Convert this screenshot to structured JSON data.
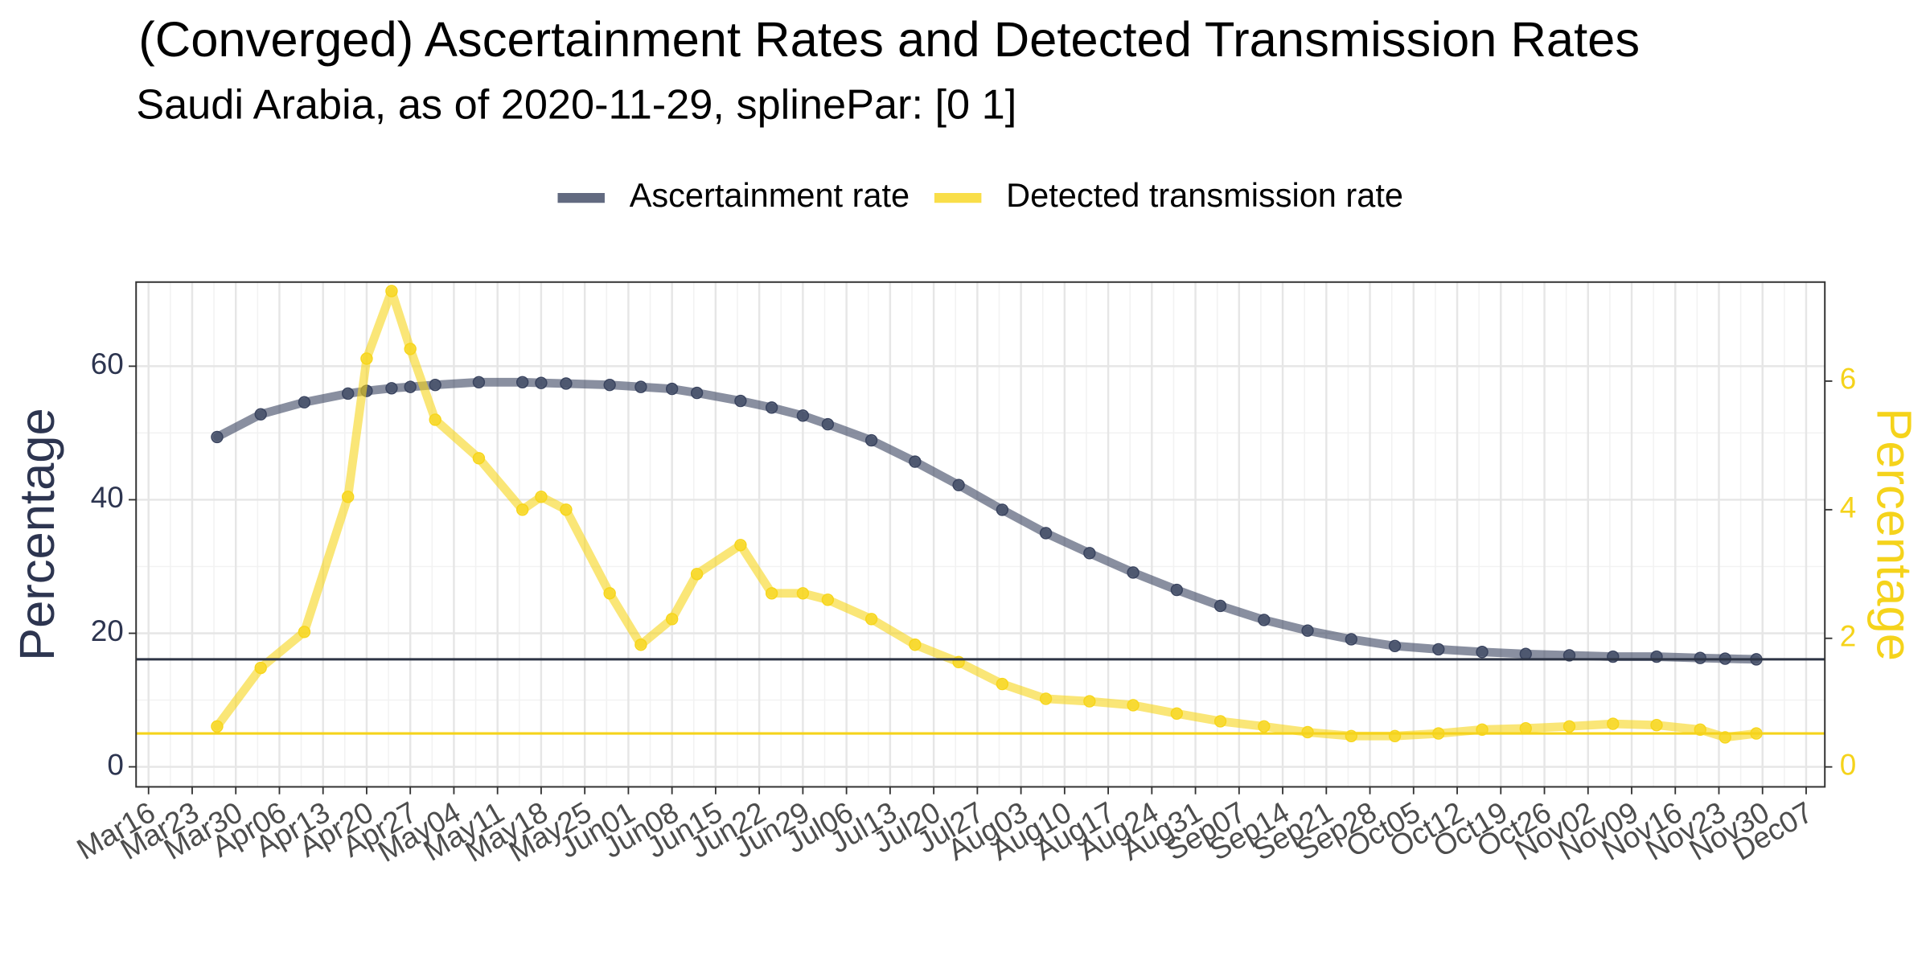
{
  "chart_data": {
    "type": "line",
    "title": "(Converged) Ascertainment Rates and Detected Transmission Rates",
    "subtitle": "Saudi Arabia, as of 2020-11-29, splinePar: [0 1]",
    "ylabel": "Percentage",
    "y2label": "Percentage",
    "legend": "top",
    "grid": true,
    "x": [
      "Mar27",
      "Apr03",
      "Apr10",
      "Apr17",
      "Apr20",
      "Apr24",
      "Apr27",
      "May01",
      "May08",
      "May15",
      "May18",
      "May22",
      "May29",
      "Jun03",
      "Jun08",
      "Jun12",
      "Jun19",
      "Jun24",
      "Jun29",
      "Jul03",
      "Jul10",
      "Jul17",
      "Jul24",
      "Jul31",
      "Aug07",
      "Aug14",
      "Aug21",
      "Aug28",
      "Sep04",
      "Sep11",
      "Sep18",
      "Sep25",
      "Oct02",
      "Oct09",
      "Oct16",
      "Oct23",
      "Oct30",
      "Nov06",
      "Nov13",
      "Nov20",
      "Nov24",
      "Nov29"
    ],
    "xlim": [
      "Mar14",
      "Dec10"
    ],
    "xticks": [
      "Mar16",
      "Mar23",
      "Mar30",
      "Apr06",
      "Apr13",
      "Apr20",
      "Apr27",
      "May04",
      "May11",
      "May18",
      "May25",
      "Jun01",
      "Jun08",
      "Jun15",
      "Jun22",
      "Jun29",
      "Jul06",
      "Jul13",
      "Jul20",
      "Jul27",
      "Aug03",
      "Aug10",
      "Aug17",
      "Aug24",
      "Aug31",
      "Sep07",
      "Sep14",
      "Sep21",
      "Sep28",
      "Oct05",
      "Oct12",
      "Oct19",
      "Oct26",
      "Nov02",
      "Nov09",
      "Nov16",
      "Nov23",
      "Nov30",
      "Dec07"
    ],
    "ylim": [
      -3,
      72.6
    ],
    "yticks": [
      0,
      20,
      40,
      60
    ],
    "y2lim": [
      -0.31,
      7.54
    ],
    "y2ticks": [
      0,
      2,
      4,
      6
    ],
    "series": [
      {
        "name": "Ascertainment rate",
        "color": "#3b4560",
        "axis": "y",
        "values": [
          49.4,
          52.8,
          54.6,
          55.9,
          56.3,
          56.7,
          56.9,
          57.2,
          57.6,
          57.6,
          57.5,
          57.4,
          57.2,
          56.9,
          56.6,
          56.0,
          54.8,
          53.8,
          52.6,
          51.3,
          48.9,
          45.7,
          42.2,
          38.5,
          35.0,
          32.0,
          29.1,
          26.5,
          24.1,
          22.0,
          20.4,
          19.1,
          18.1,
          17.6,
          17.2,
          16.9,
          16.7,
          16.5,
          16.5,
          16.3,
          16.2,
          16.1
        ]
      },
      {
        "name": "Detected transmission rate",
        "color": "#f7d61c",
        "axis": "y2",
        "values": [
          0.63,
          1.54,
          2.1,
          4.2,
          6.35,
          7.4,
          6.5,
          5.4,
          4.8,
          4.0,
          4.2,
          4.0,
          2.7,
          1.9,
          2.3,
          3.0,
          3.45,
          2.7,
          2.7,
          2.6,
          2.3,
          1.9,
          1.63,
          1.29,
          1.06,
          1.02,
          0.96,
          0.83,
          0.71,
          0.63,
          0.54,
          0.48,
          0.48,
          0.52,
          0.58,
          0.6,
          0.63,
          0.67,
          0.65,
          0.58,
          0.46,
          0.52
        ]
      }
    ],
    "reference_lines": [
      {
        "value": 16.1,
        "axis": "y",
        "color": "#2d3445"
      },
      {
        "value": 0.52,
        "axis": "y2",
        "color": "#f5d31b"
      }
    ],
    "y_tick_color": "#2d3550",
    "y2_tick_color": "#f5d31b"
  }
}
